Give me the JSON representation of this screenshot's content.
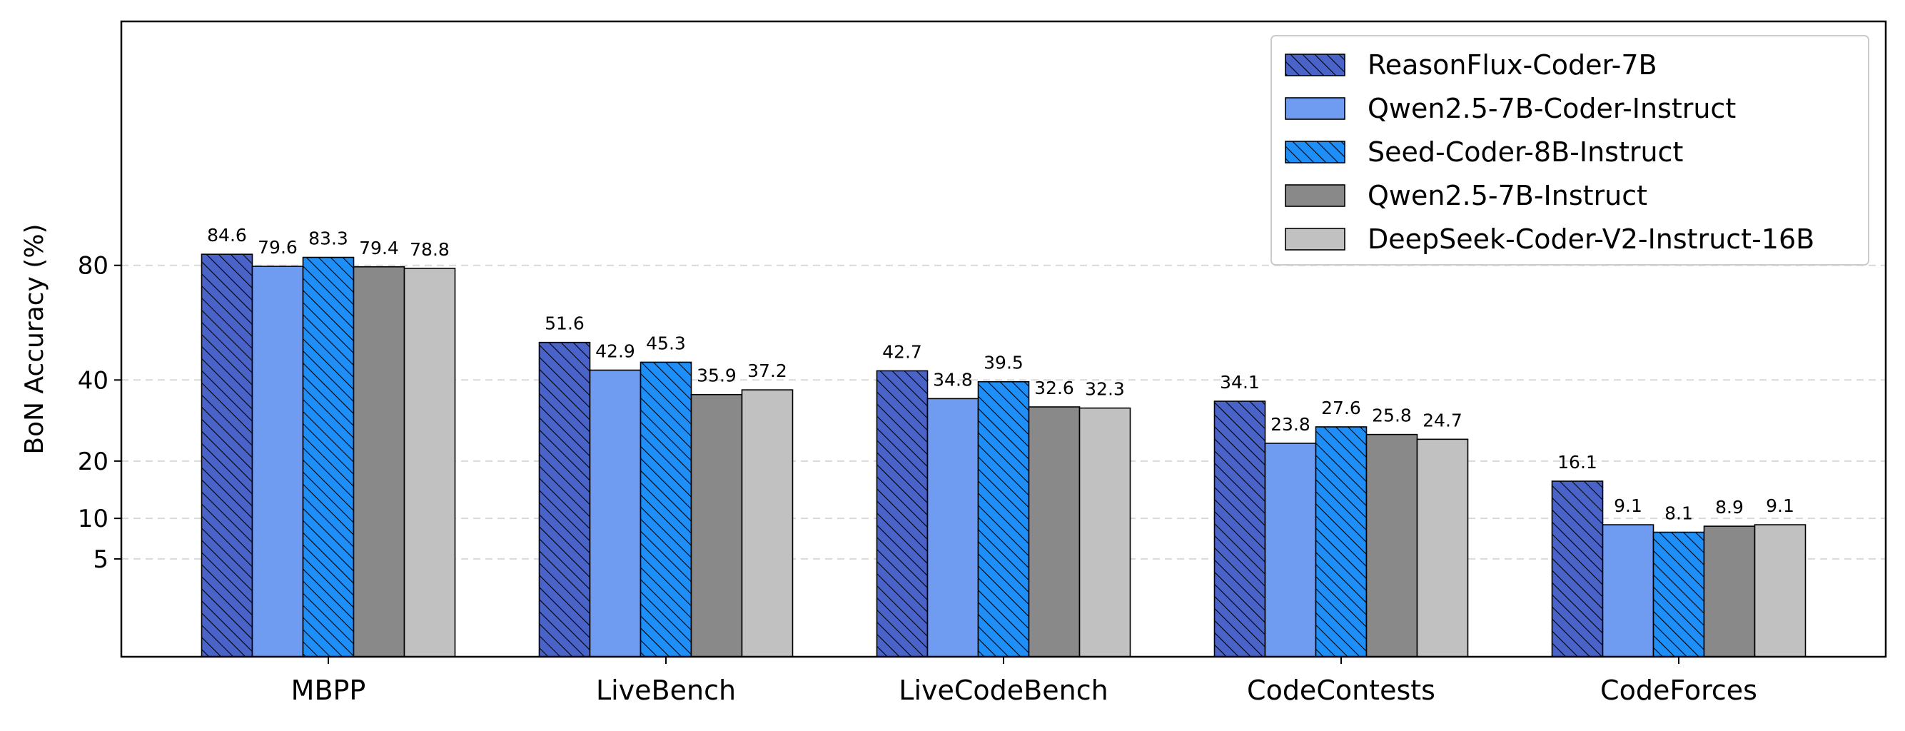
{
  "chart_data": {
    "type": "bar",
    "title": "",
    "xlabel": "",
    "ylabel": "BoN Accuracy (%)",
    "scale": "sqrt",
    "ylim": [
      0,
      100
    ],
    "yticks": [
      5,
      10,
      20,
      40,
      80
    ],
    "grid": "horizontal dashed",
    "legend_position": "top-right",
    "categories": [
      "MBPP",
      "LiveBench",
      "LiveCodeBench",
      "CodeContests",
      "CodeForces"
    ],
    "series": [
      {
        "name": "ReasonFlux-Coder-7B",
        "color": "#4a63c8",
        "hatch": true,
        "values": [
          84.6,
          51.6,
          42.7,
          34.1,
          16.1
        ],
        "labels": [
          "84.6",
          "51.6",
          "42.7",
          "34.1",
          "16.1"
        ]
      },
      {
        "name": "Qwen2.5-7B-Coder-Instruct",
        "color": "#6f9cf0",
        "hatch": false,
        "values": [
          79.6,
          42.9,
          34.8,
          23.8,
          9.1
        ],
        "labels": [
          "79.6",
          "42.9",
          "34.8",
          "23.8",
          "9.1"
        ]
      },
      {
        "name": "Seed-Coder-8B-Instruct",
        "color": "#1e8ff8",
        "hatch": true,
        "values": [
          83.3,
          45.3,
          39.5,
          27.6,
          8.1
        ],
        "labels": [
          "83.3",
          "45.3",
          "39.5",
          "27.6",
          "8.1"
        ]
      },
      {
        "name": "Qwen2.5-7B-Instruct",
        "color": "#898989",
        "hatch": false,
        "values": [
          79.4,
          35.9,
          32.6,
          25.8,
          8.9
        ],
        "labels": [
          "79.4",
          "35.9",
          "32.6",
          "25.8",
          "8.9"
        ]
      },
      {
        "name": "DeepSeek-Coder-V2-Instruct-16B",
        "color": "#c1c1c1",
        "hatch": false,
        "values": [
          78.8,
          37.2,
          32.3,
          24.7,
          9.1
        ],
        "labels": [
          "78.8",
          "37.2",
          "32.3",
          "24.7",
          "9.1"
        ]
      }
    ]
  }
}
